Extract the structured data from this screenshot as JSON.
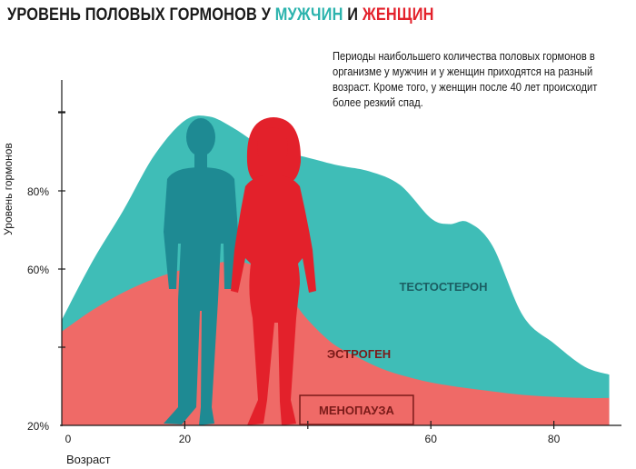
{
  "title": {
    "part1": "УРОВЕНЬ ПОЛОВЫХ ГОРМОНОВ У ",
    "men": "МУЖЧИН",
    "and": " И ",
    "women": "ЖЕНЩИН"
  },
  "note": "Периоды наибольшего количества половых гормонов в организме у мужчин и у женщин приходятся на разный возраст. Кроме того, у женщин после 40 лет происходит более резкий спад.",
  "colors": {
    "testosterone": "#3fbdb7",
    "estrogen": "#ef6a67",
    "man_silhouette": "#1e8a93",
    "woman_silhouette": "#e3212b",
    "axis": "#1a1a1a"
  },
  "icons": {
    "man": "man-silhouette-icon",
    "woman": "woman-silhouette-icon"
  },
  "chart_data": {
    "type": "area",
    "ylabel": "Уровень гормонов",
    "xlabel": "Возраст",
    "x_ticks": [
      "0",
      "20",
      "60",
      "80"
    ],
    "y_ticks": [
      "20%",
      "60%",
      "80%"
    ],
    "ylim": [
      20,
      100
    ],
    "xlim": [
      0,
      90
    ],
    "series": [
      {
        "name": "ТЕСТОСТЕРОН",
        "color": "#3fbdb7",
        "x": [
          0,
          5,
          10,
          15,
          20,
          24,
          28,
          32,
          36,
          40,
          45,
          50,
          55,
          60,
          63,
          66,
          70,
          75,
          80,
          85,
          89
        ],
        "y": [
          47,
          62,
          75,
          89,
          98,
          99,
          96,
          92,
          90,
          88.5,
          86.5,
          85,
          81.5,
          73,
          71.5,
          72,
          66,
          48,
          41,
          35,
          33
        ]
      },
      {
        "name": "ЭСТРОГЕН",
        "color": "#ef6a67",
        "x": [
          0,
          5,
          10,
          15,
          20,
          25,
          28,
          31,
          34,
          37,
          40,
          44,
          48,
          52,
          56,
          60,
          65,
          70,
          75,
          80,
          85,
          89
        ],
        "y": [
          44,
          49.5,
          54,
          57.5,
          60,
          61.5,
          62,
          61,
          58,
          53,
          47,
          41,
          37.5,
          34.5,
          32.5,
          31,
          29.7,
          28.7,
          27.8,
          27.3,
          27,
          27
        ]
      }
    ],
    "annotations": [
      {
        "text": "МЕНОПАУЗА",
        "x_from": 39,
        "x_to": 57
      }
    ]
  }
}
